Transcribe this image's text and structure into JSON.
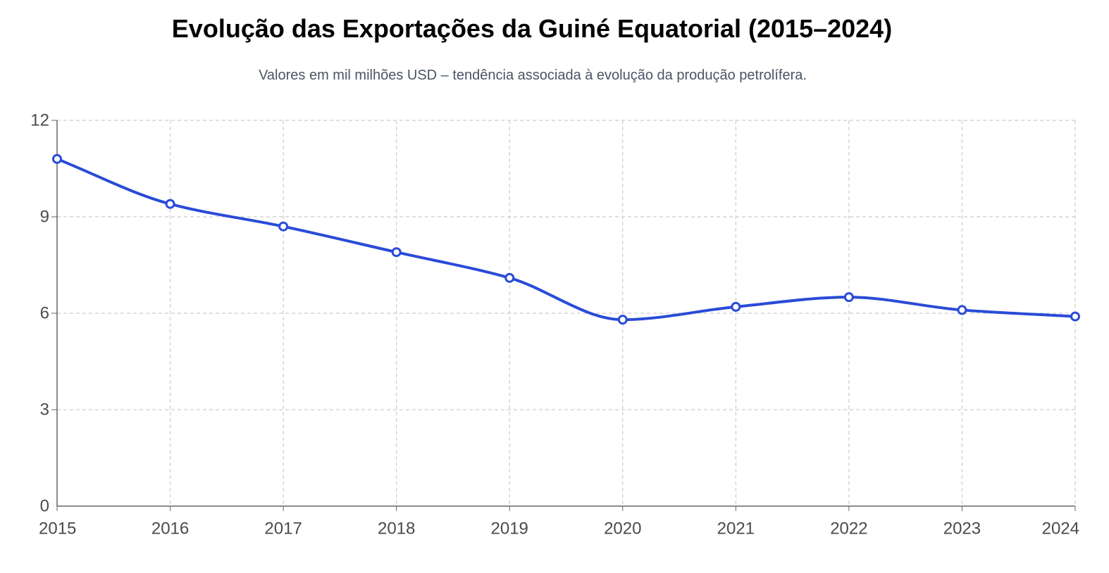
{
  "chart_data": {
    "type": "line",
    "title": "Evolução das Exportações da Guiné Equatorial (2015–2024)",
    "subtitle": "Valores em mil milhões USD – tendência associada à evolução da produção petrolífera.",
    "xlabel": "",
    "ylabel": "",
    "categories": [
      "2015",
      "2016",
      "2017",
      "2018",
      "2019",
      "2020",
      "2021",
      "2022",
      "2023",
      "2024"
    ],
    "series": [
      {
        "values": [
          10.8,
          9.4,
          8.7,
          7.9,
          7.1,
          5.8,
          6.2,
          6.5,
          6.1,
          5.9
        ]
      }
    ],
    "ylim": [
      0,
      12
    ],
    "yticks": [
      "0",
      "3",
      "6",
      "9",
      "12"
    ],
    "grid": true,
    "legend": "none",
    "colors": {
      "line": "#2a4bd7",
      "marker_fill": "#ffffff",
      "grid": "#cccccc",
      "axis": "#666666"
    }
  }
}
